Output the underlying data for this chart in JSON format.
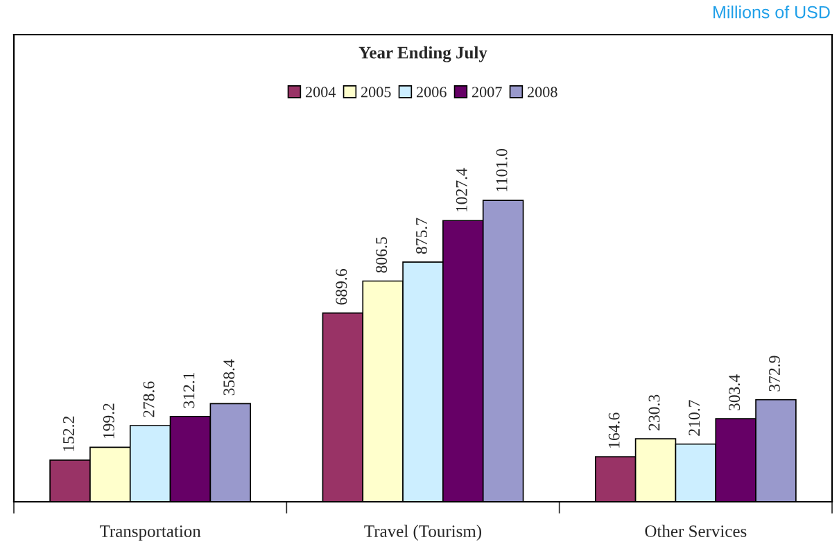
{
  "chart_data": {
    "type": "bar",
    "title": "Year Ending July",
    "categories": [
      "Transportation",
      "Travel (Tourism)",
      "Other Services"
    ],
    "series": [
      {
        "name": "2004",
        "color": "#993366",
        "values": [
          152.2,
          689.6,
          164.6
        ]
      },
      {
        "name": "2005",
        "color": "#ffffcc",
        "values": [
          199.2,
          806.5,
          230.3
        ]
      },
      {
        "name": "2006",
        "color": "#cceeff",
        "values": [
          278.6,
          875.7,
          210.7
        ]
      },
      {
        "name": "2007",
        "color": "#660066",
        "values": [
          312.1,
          1027.4,
          303.4
        ]
      },
      {
        "name": "2008",
        "color": "#9999cc",
        "values": [
          358.4,
          1101.0,
          372.9
        ],
        "value_labels": [
          "358.4",
          "1101.0",
          "372.9"
        ]
      }
    ],
    "data_labels": true,
    "legend": "top",
    "grid": false,
    "annotations": [
      "Millions of USD"
    ]
  }
}
